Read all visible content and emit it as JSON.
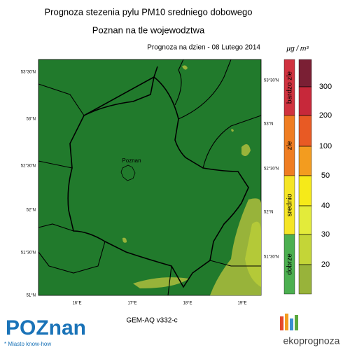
{
  "header": {
    "title": "Prognoza stezenia pylu PM10 sredniego dobowego",
    "subtitle": "Poznan na tle wojewodztwa",
    "date": "Prognoza na dzien -  08 Lutego 2014"
  },
  "map": {
    "lat_left": [
      "53°30'N",
      "53°N",
      "52°30'N",
      "52°N",
      "51°30'N",
      "51°N"
    ],
    "lat_right": [
      "53°30'N",
      "53°N",
      "52°30'N",
      "52°N",
      "51°30'N"
    ],
    "lon": [
      "16°E",
      "17°E",
      "18°E",
      "19°E"
    ],
    "city": "Poznan"
  },
  "legend": {
    "unit": "µg / m³",
    "levels": [
      300,
      200,
      100,
      50,
      40,
      30,
      20
    ],
    "categories": [
      "bardzo zle",
      "zle",
      "srednio",
      "dobrze"
    ]
  },
  "footer": {
    "model": "GEM-AQ v332-c",
    "logo": "POZnan",
    "tagline": "* Miasto know-how",
    "brand": "ekoprognoza"
  }
}
